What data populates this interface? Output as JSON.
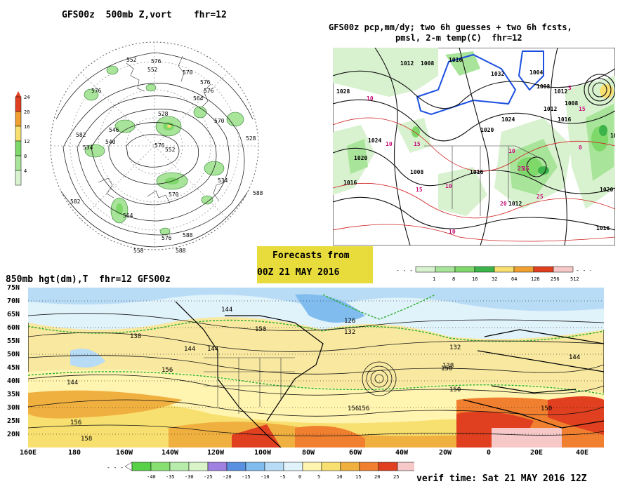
{
  "panel_tl": {
    "title": "GFS00z  500mb Z,vort    fhr=12",
    "legend_ticks": [
      "24",
      "20",
      "16",
      "12",
      "8",
      "4"
    ],
    "legend_colors": [
      "#e04020",
      "#f0a030",
      "#f8e070",
      "#7fd86a",
      "#a8e49a",
      "#d8f2cf"
    ],
    "contour_labels": [
      "552",
      "576",
      "552",
      "570",
      "576",
      "576",
      "564",
      "576",
      "528",
      "582",
      "534",
      "546",
      "540",
      "570",
      "552",
      "534",
      "588",
      "576",
      "582",
      "570",
      "564",
      "588",
      "558",
      "576",
      "588",
      "528"
    ]
  },
  "panel_tr": {
    "title_line1": "GFS00z pcp,mm/dy; two 6h guesses + two 6h fcsts,",
    "title_line2": "pmsl, 2-m temp(C)  fhr=12",
    "isobar_labels": [
      "1012",
      "1008",
      "1016",
      "1032",
      "1028",
      "1024",
      "1020",
      "1016",
      "1004",
      "1008",
      "1012",
      "1024",
      "1012",
      "1016",
      "1020",
      "1008",
      "1016",
      "1012",
      "1008",
      "102",
      "1020",
      "1016"
    ],
    "temp_labels": [
      "10",
      "10",
      "15",
      "10",
      "15",
      "25",
      "20",
      "25",
      "10",
      "10",
      "15",
      "5",
      "0",
      "15"
    ]
  },
  "center_box": {
    "line1": "Forecasts from",
    "line2": "00Z 21 MAY 2016"
  },
  "precip_legend": {
    "ticks": [
      "1",
      "8",
      "16",
      "32",
      "64",
      "128",
      "256",
      "512"
    ],
    "colors": [
      "#d8f2cf",
      "#a8e49a",
      "#7fd86a",
      "#3cb44a",
      "#f8e070",
      "#f0a030",
      "#e04020",
      "#f6c8c8"
    ]
  },
  "panel_bottom": {
    "title": "850mb hgt(dm),T  fhr=12 GFS00z",
    "lat_labels": [
      "75N",
      "70N",
      "65N",
      "60N",
      "55N",
      "50N",
      "45N",
      "40N",
      "35N",
      "30N",
      "25N",
      "20N"
    ],
    "lon_labels": [
      "160E",
      "180",
      "160W",
      "140W",
      "120W",
      "100W",
      "80W",
      "60W",
      "40W",
      "20W",
      "0",
      "20E",
      "40E"
    ],
    "contour_labels": [
      "144",
      "126",
      "132",
      "138",
      "150",
      "144",
      "132",
      "150",
      "156",
      "144",
      "138",
      "150",
      "156",
      "144",
      "156",
      "156",
      "158",
      "150",
      "144",
      "144"
    ],
    "verif_time": "verif time: Sat 21 MAY 2016 12Z"
  },
  "temp_legend": {
    "ticks": [
      "-40",
      "-35",
      "-30",
      "-25",
      "-20",
      "-15",
      "-10",
      "-5",
      "0",
      "5",
      "10",
      "15",
      "20",
      "25"
    ],
    "colors": [
      "#58d048",
      "#88e070",
      "#b8ecaa",
      "#d8f4c8",
      "#a080e0",
      "#5a90e0",
      "#80bcee",
      "#b8dcf6",
      "#e0f2fa",
      "#fff4b0",
      "#f8e070",
      "#f0b040",
      "#f08030",
      "#e04020",
      "#f6c8c8"
    ]
  }
}
